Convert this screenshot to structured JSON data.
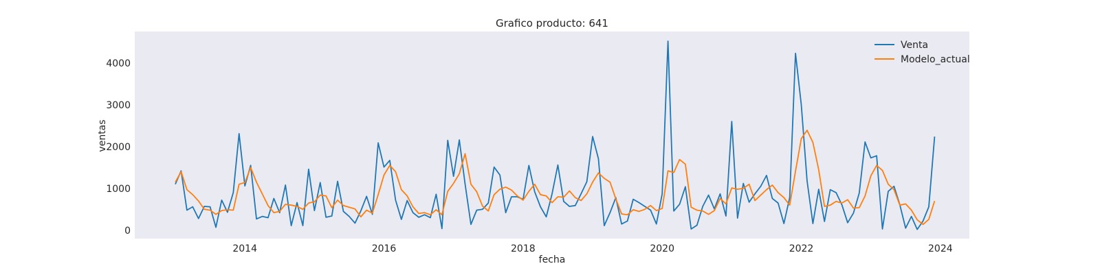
{
  "chart_data": {
    "type": "line",
    "title": "Grafico producto: 641",
    "xlabel": "fecha",
    "ylabel": "ventas",
    "x_axis": "monthly dates, 2013-01 to 2023-12",
    "x_start": "2013-01",
    "x_ticks": [
      "2014",
      "2016",
      "2018",
      "2020",
      "2022",
      "2024"
    ],
    "y_ticks": [
      "0",
      "1000",
      "2000",
      "3000",
      "4000"
    ],
    "xlim": [
      "2012-06",
      "2024-06"
    ],
    "ylim": [
      -200,
      4750
    ],
    "grid": false,
    "legend": "top-right",
    "colors": {
      "Venta": "#1f77b4",
      "Modelo_actual": "#ff7f0e",
      "plot_background": "#eaeaf2"
    },
    "series": [
      {
        "name": "Venta",
        "values": [
          1100,
          1420,
          480,
          560,
          280,
          570,
          560,
          70,
          720,
          430,
          900,
          2310,
          1060,
          1550,
          270,
          330,
          300,
          760,
          420,
          1080,
          110,
          660,
          110,
          1460,
          470,
          1140,
          310,
          340,
          1170,
          450,
          330,
          170,
          460,
          810,
          380,
          2090,
          1510,
          1670,
          720,
          260,
          710,
          420,
          310,
          370,
          300,
          860,
          40,
          2150,
          1290,
          2160,
          1100,
          140,
          480,
          500,
          650,
          1510,
          1320,
          420,
          800,
          800,
          740,
          1550,
          920,
          560,
          320,
          870,
          1560,
          690,
          570,
          590,
          870,
          1160,
          2240,
          1710,
          110,
          420,
          780,
          150,
          220,
          740,
          660,
          570,
          480,
          150,
          870,
          4520,
          460,
          620,
          1040,
          30,
          120,
          570,
          840,
          510,
          870,
          340,
          2600,
          290,
          1120,
          670,
          870,
          1050,
          1310,
          760,
          650,
          160,
          780,
          4230,
          3000,
          1180,
          160,
          980,
          210,
          970,
          900,
          610,
          180,
          410,
          890,
          2110,
          1730,
          1780,
          30,
          930,
          1050,
          610,
          50,
          330,
          20,
          220,
          560,
          2240
        ]
      },
      {
        "name": "Modelo_actual",
        "values": [
          1150,
          1400,
          970,
          850,
          700,
          500,
          480,
          380,
          470,
          490,
          480,
          1100,
          1140,
          1500,
          1150,
          870,
          590,
          420,
          450,
          620,
          600,
          570,
          500,
          650,
          680,
          840,
          820,
          540,
          720,
          590,
          550,
          510,
          320,
          480,
          410,
          850,
          1320,
          1550,
          1400,
          970,
          820,
          560,
          400,
          420,
          370,
          490,
          370,
          930,
          1120,
          1350,
          1830,
          1100,
          920,
          580,
          460,
          850,
          980,
          1030,
          960,
          820,
          720,
          930,
          1100,
          850,
          820,
          660,
          800,
          790,
          940,
          780,
          710,
          870,
          1150,
          1370,
          1240,
          1150,
          750,
          390,
          370,
          490,
          450,
          500,
          590,
          470,
          520,
          1420,
          1380,
          1690,
          1580,
          550,
          480,
          460,
          380,
          470,
          760,
          630,
          1010,
          980,
          1000,
          1100,
          710,
          840,
          970,
          1080,
          900,
          780,
          600,
          1410,
          2190,
          2390,
          2100,
          1450,
          570,
          600,
          690,
          650,
          730,
          530,
          540,
          820,
          1300,
          1550,
          1430,
          1100,
          970,
          600,
          630,
          480,
          250,
          140,
          260,
          700
        ]
      }
    ]
  }
}
